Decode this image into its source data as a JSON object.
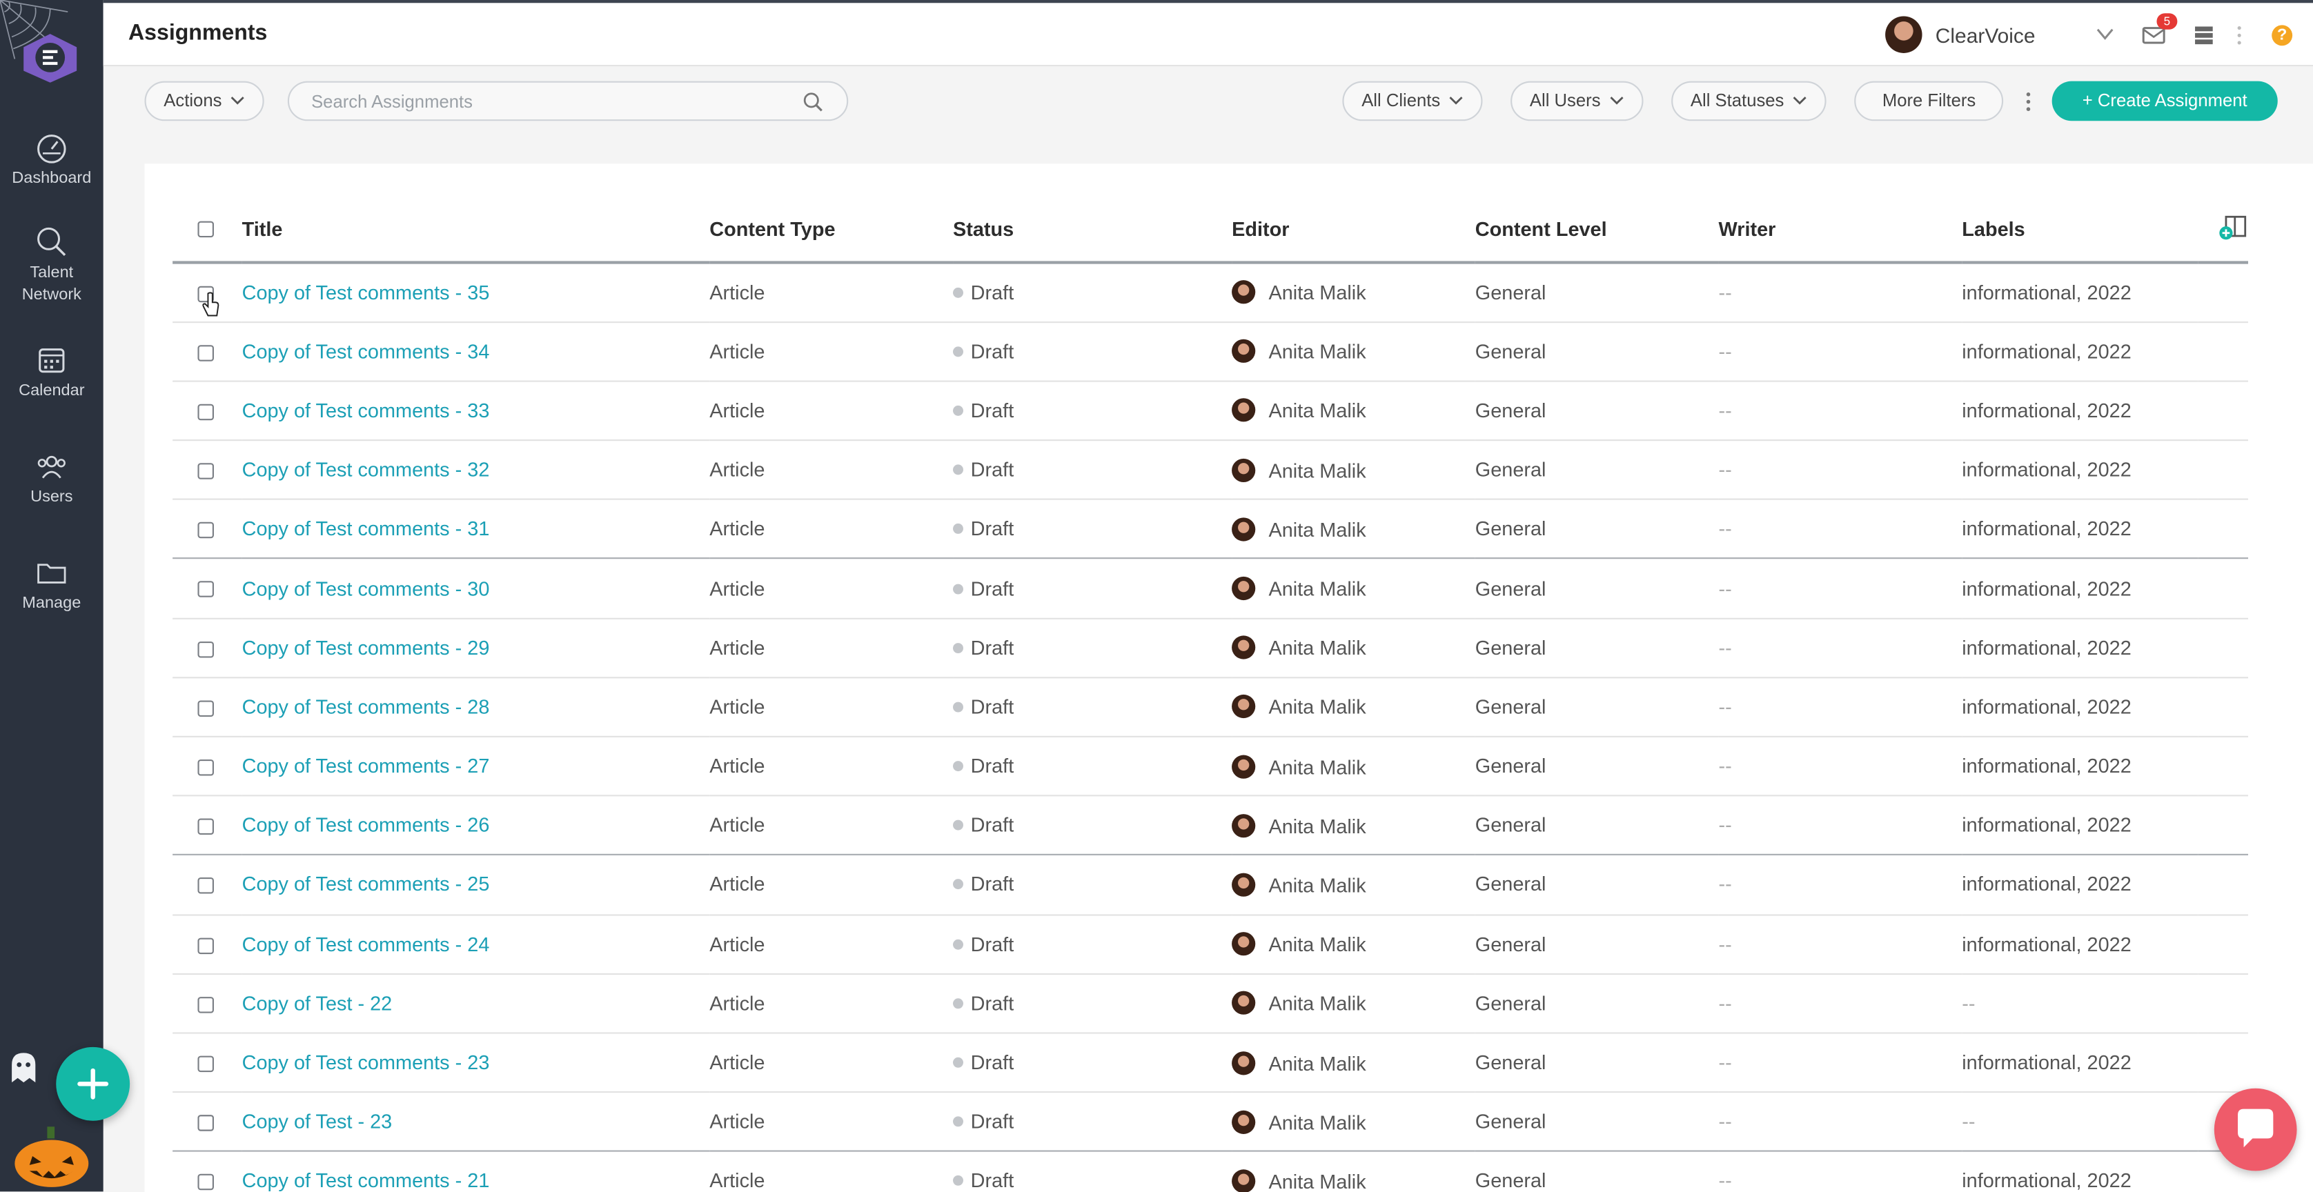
{
  "sidebar": {
    "items": [
      {
        "label": "Dashboard",
        "icon": "dashboard-icon"
      },
      {
        "label": "Talent Network",
        "icon": "search-icon"
      },
      {
        "label": "Calendar",
        "icon": "calendar-icon"
      },
      {
        "label": "Users",
        "icon": "users-icon"
      },
      {
        "label": "Manage",
        "icon": "folder-icon"
      }
    ]
  },
  "header": {
    "title": "Assignments",
    "client": "ClearVoice",
    "mail_count": "5",
    "help": "?"
  },
  "toolbar": {
    "actions_label": "Actions",
    "search_placeholder": "Search Assignments",
    "filters": [
      "All Clients",
      "All Users",
      "All Statuses"
    ],
    "more_filters_label": "More Filters",
    "create_label": "+ Create Assignment"
  },
  "table": {
    "columns": [
      "Title",
      "Content Type",
      "Status",
      "Editor",
      "Content Level",
      "Writer",
      "Labels"
    ],
    "rows": [
      {
        "title": "Copy of Test comments - 35",
        "type": "Article",
        "status": "Draft",
        "editor": "Anita Malik",
        "level": "General",
        "writer": "--",
        "labels": "informational, 2022"
      },
      {
        "title": "Copy of Test comments - 34",
        "type": "Article",
        "status": "Draft",
        "editor": "Anita Malik",
        "level": "General",
        "writer": "--",
        "labels": "informational, 2022"
      },
      {
        "title": "Copy of Test comments - 33",
        "type": "Article",
        "status": "Draft",
        "editor": "Anita Malik",
        "level": "General",
        "writer": "--",
        "labels": "informational, 2022"
      },
      {
        "title": "Copy of Test comments - 32",
        "type": "Article",
        "status": "Draft",
        "editor": "Anita Malik",
        "level": "General",
        "writer": "--",
        "labels": "informational, 2022"
      },
      {
        "title": "Copy of Test comments - 31",
        "type": "Article",
        "status": "Draft",
        "editor": "Anita Malik",
        "level": "General",
        "writer": "--",
        "labels": "informational, 2022"
      },
      {
        "title": "Copy of Test comments - 30",
        "type": "Article",
        "status": "Draft",
        "editor": "Anita Malik",
        "level": "General",
        "writer": "--",
        "labels": "informational, 2022"
      },
      {
        "title": "Copy of Test comments - 29",
        "type": "Article",
        "status": "Draft",
        "editor": "Anita Malik",
        "level": "General",
        "writer": "--",
        "labels": "informational, 2022"
      },
      {
        "title": "Copy of Test comments - 28",
        "type": "Article",
        "status": "Draft",
        "editor": "Anita Malik",
        "level": "General",
        "writer": "--",
        "labels": "informational, 2022"
      },
      {
        "title": "Copy of Test comments - 27",
        "type": "Article",
        "status": "Draft",
        "editor": "Anita Malik",
        "level": "General",
        "writer": "--",
        "labels": "informational, 2022"
      },
      {
        "title": "Copy of Test comments - 26",
        "type": "Article",
        "status": "Draft",
        "editor": "Anita Malik",
        "level": "General",
        "writer": "--",
        "labels": "informational, 2022"
      },
      {
        "title": "Copy of Test comments - 25",
        "type": "Article",
        "status": "Draft",
        "editor": "Anita Malik",
        "level": "General",
        "writer": "--",
        "labels": "informational, 2022"
      },
      {
        "title": "Copy of Test comments - 24",
        "type": "Article",
        "status": "Draft",
        "editor": "Anita Malik",
        "level": "General",
        "writer": "--",
        "labels": "informational, 2022"
      },
      {
        "title": "Copy of Test - 22",
        "type": "Article",
        "status": "Draft",
        "editor": "Anita Malik",
        "level": "General",
        "writer": "--",
        "labels": "--"
      },
      {
        "title": "Copy of Test comments - 23",
        "type": "Article",
        "status": "Draft",
        "editor": "Anita Malik",
        "level": "General",
        "writer": "--",
        "labels": "informational, 2022"
      },
      {
        "title": "Copy of Test - 23",
        "type": "Article",
        "status": "Draft",
        "editor": "Anita Malik",
        "level": "General",
        "writer": "--",
        "labels": "--"
      },
      {
        "title": "Copy of Test comments - 21",
        "type": "Article",
        "status": "Draft",
        "editor": "Anita Malik",
        "level": "General",
        "writer": "--",
        "labels": "informational, 2022"
      }
    ]
  },
  "colors": {
    "accent": "#14b8a6",
    "link": "#1b9fb5",
    "sidebar_bg": "#2b323e",
    "badge": "#e53935",
    "chat": "#ef5b6a"
  }
}
